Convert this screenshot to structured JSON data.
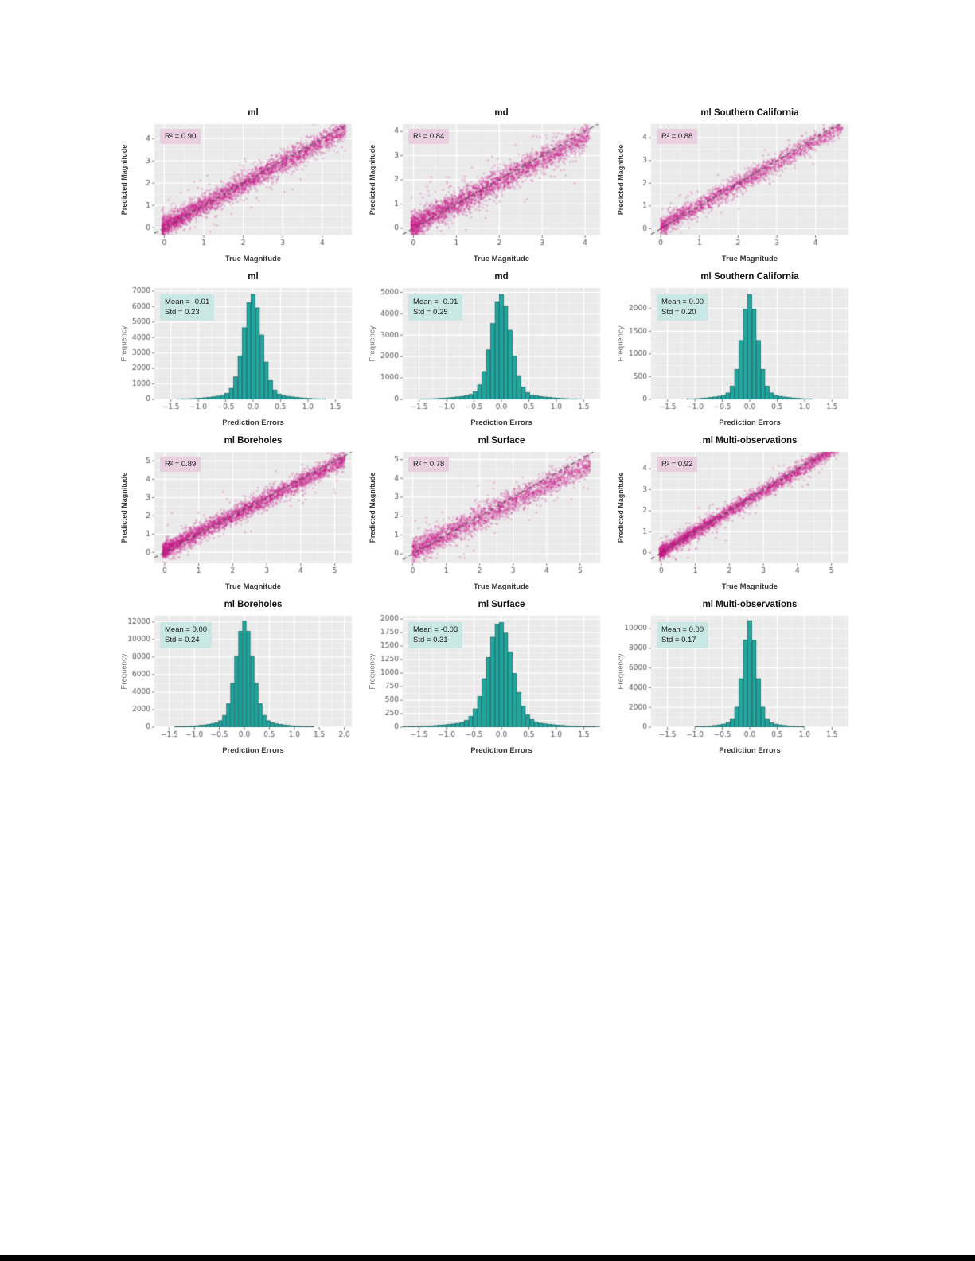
{
  "page": {
    "bottom_bar_color": "#000000"
  },
  "colors": {
    "plot_bg": "#eaeaea",
    "grid_major": "#ffffff",
    "tick_text": "#555555",
    "scatter_point": "#c71585",
    "identity_line": "#555555",
    "hist_fill": "#1fa8a1",
    "hist_edge": "#0b5a56",
    "anno_pink_bg": "#e9cfdf",
    "anno_teal_bg": "#c9e8e5"
  },
  "chart_data": [
    {
      "type": "scatter",
      "title": "ml",
      "annotation": "R² = 0.90",
      "r2": 0.9,
      "xlabel": "True Magnitude",
      "ylabel": "Predicted Magnitude",
      "xlim": [
        -0.25,
        4.75
      ],
      "ylim": [
        -0.35,
        4.65
      ],
      "xticks": [
        0,
        1,
        2,
        3,
        4
      ],
      "xtick_labels": [
        "0",
        "1",
        "2",
        "3",
        "4"
      ],
      "yticks": [
        0,
        1,
        2,
        3,
        4
      ],
      "ytick_labels": [
        "0",
        "1",
        "2",
        "3",
        "4"
      ],
      "data_xmin": -0.05,
      "data_xmax": 4.6,
      "spread": 0.23,
      "fit_slope": 0.95,
      "fit_intercept": 0.07,
      "n_points": 3200
    },
    {
      "type": "scatter",
      "title": "md",
      "annotation": "R² = 0.84",
      "r2": 0.84,
      "xlabel": "True Magnitude",
      "ylabel": "Predicted Magnitude",
      "xlim": [
        -0.25,
        4.35
      ],
      "ylim": [
        -0.3,
        4.3
      ],
      "xticks": [
        0,
        1,
        2,
        3,
        4
      ],
      "xtick_labels": [
        "0",
        "1",
        "2",
        "3",
        "4"
      ],
      "yticks": [
        0,
        1,
        2,
        3,
        4
      ],
      "ytick_labels": [
        "0",
        "1",
        "2",
        "3",
        "4"
      ],
      "data_xmin": -0.05,
      "data_xmax": 4.1,
      "spread": 0.25,
      "fit_slope": 0.92,
      "fit_intercept": 0.1,
      "n_points": 3000
    },
    {
      "type": "scatter",
      "title": "ml Southern California",
      "annotation": "R² = 0.88",
      "r2": 0.88,
      "xlabel": "True Magnitude",
      "ylabel": "Predicted Magnitude",
      "xlim": [
        -0.25,
        4.85
      ],
      "ylim": [
        -0.3,
        4.6
      ],
      "xticks": [
        0,
        1,
        2,
        3,
        4
      ],
      "xtick_labels": [
        "0",
        "1",
        "2",
        "3",
        "4"
      ],
      "yticks": [
        0,
        1,
        2,
        3,
        4
      ],
      "ytick_labels": [
        "0",
        "1",
        "2",
        "3",
        "4"
      ],
      "data_xmin": 0.0,
      "data_xmax": 4.7,
      "spread": 0.2,
      "fit_slope": 0.94,
      "fit_intercept": 0.08,
      "n_points": 2000
    },
    {
      "type": "histogram",
      "title": "ml",
      "stats_lines": [
        "Mean = -0.01",
        "Std = 0.23"
      ],
      "mean": -0.01,
      "std": 0.23,
      "peak": 6800,
      "bin_width": 0.08,
      "xlabel": "Prediction Errors",
      "ylabel": "Frequency",
      "xlim": [
        -1.8,
        1.8
      ],
      "ylim": [
        0,
        7200
      ],
      "xticks": [
        -1.5,
        -1.0,
        -0.5,
        0.0,
        0.5,
        1.0,
        1.5
      ],
      "xtick_labels": [
        "−1.5",
        "−1.0",
        "−0.5",
        "0.0",
        "0.5",
        "1.0",
        "1.5"
      ],
      "yticks": [
        0,
        1000,
        2000,
        3000,
        4000,
        5000,
        6000,
        7000
      ],
      "ytick_labels": [
        "0",
        "1000",
        "2000",
        "3000",
        "4000",
        "5000",
        "6000",
        "7000"
      ]
    },
    {
      "type": "histogram",
      "title": "md",
      "stats_lines": [
        "Mean = -0.01",
        "Std = 0.25"
      ],
      "mean": -0.01,
      "std": 0.25,
      "peak": 4900,
      "bin_width": 0.08,
      "xlabel": "Prediction Errors",
      "ylabel": "Frequency",
      "xlim": [
        -1.8,
        1.8
      ],
      "ylim": [
        0,
        5200
      ],
      "xticks": [
        -1.5,
        -1.0,
        -0.5,
        0.0,
        0.5,
        1.0,
        1.5
      ],
      "xtick_labels": [
        "−1.5",
        "−1.0",
        "−0.5",
        "0.0",
        "0.5",
        "1.0",
        "1.5"
      ],
      "yticks": [
        0,
        1000,
        2000,
        3000,
        4000,
        5000
      ],
      "ytick_labels": [
        "0",
        "1000",
        "2000",
        "3000",
        "4000",
        "5000"
      ]
    },
    {
      "type": "histogram",
      "title": "ml Southern California",
      "stats_lines": [
        "Mean = 0.00",
        "Std = 0.20"
      ],
      "mean": 0.0,
      "std": 0.2,
      "peak": 2300,
      "bin_width": 0.08,
      "xlabel": "Prediction Errors",
      "ylabel": "Frequency",
      "xlim": [
        -1.8,
        1.8
      ],
      "ylim": [
        0,
        2450
      ],
      "xticks": [
        -1.5,
        -1.0,
        -0.5,
        0.0,
        0.5,
        1.0,
        1.5
      ],
      "xtick_labels": [
        "−1.5",
        "−1.0",
        "−0.5",
        "0.0",
        "0.5",
        "1.0",
        "1.5"
      ],
      "yticks": [
        0,
        500,
        1000,
        1500,
        2000
      ],
      "ytick_labels": [
        "0",
        "500",
        "1000",
        "1500",
        "2000"
      ]
    },
    {
      "type": "scatter",
      "title": "ml Boreholes",
      "annotation": "R² = 0.89",
      "r2": 0.89,
      "xlabel": "True Magnitude",
      "ylabel": "Predicted Magnitude",
      "xlim": [
        -0.3,
        5.5
      ],
      "ylim": [
        -0.6,
        5.5
      ],
      "xticks": [
        0,
        1,
        2,
        3,
        4,
        5
      ],
      "xtick_labels": [
        "0",
        "1",
        "2",
        "3",
        "4",
        "5"
      ],
      "yticks": [
        0,
        1,
        2,
        3,
        4,
        5
      ],
      "ytick_labels": [
        "0",
        "1",
        "2",
        "3",
        "4",
        "5"
      ],
      "data_xmin": -0.05,
      "data_xmax": 5.3,
      "spread": 0.24,
      "fit_slope": 0.94,
      "fit_intercept": 0.12,
      "n_points": 3200
    },
    {
      "type": "scatter",
      "title": "ml Surface",
      "annotation": "R² = 0.78",
      "r2": 0.78,
      "xlabel": "True Magnitude",
      "ylabel": "Predicted Magnitude",
      "xlim": [
        -0.3,
        5.6
      ],
      "ylim": [
        -0.5,
        5.4
      ],
      "xticks": [
        0,
        1,
        2,
        3,
        4,
        5
      ],
      "xtick_labels": [
        "0",
        "1",
        "2",
        "3",
        "4",
        "5"
      ],
      "yticks": [
        0,
        1,
        2,
        3,
        4,
        5
      ],
      "ytick_labels": [
        "0",
        "1",
        "2",
        "3",
        "4",
        "5"
      ],
      "data_xmin": 0.0,
      "data_xmax": 5.3,
      "spread": 0.31,
      "fit_slope": 0.87,
      "fit_intercept": 0.15,
      "n_points": 2400
    },
    {
      "type": "scatter",
      "title": "ml Multi-observations",
      "annotation": "R² = 0.92",
      "r2": 0.92,
      "xlabel": "True Magnitude",
      "ylabel": "Predicted Magnitude",
      "xlim": [
        -0.3,
        5.5
      ],
      "ylim": [
        -0.5,
        4.8
      ],
      "xticks": [
        0,
        1,
        2,
        3,
        4,
        5
      ],
      "xtick_labels": [
        "0",
        "1",
        "2",
        "3",
        "4",
        "5"
      ],
      "yticks": [
        0,
        1,
        2,
        3,
        4
      ],
      "ytick_labels": [
        "0",
        "1",
        "2",
        "3",
        "4"
      ],
      "data_xmin": -0.05,
      "data_xmax": 5.2,
      "spread": 0.17,
      "fit_slope": 0.96,
      "fit_intercept": 0.05,
      "n_points": 3000
    },
    {
      "type": "histogram",
      "title": "ml Boreholes",
      "stats_lines": [
        "Mean = 0.00",
        "Std = 0.24"
      ],
      "mean": 0.0,
      "std": 0.24,
      "peak": 12100,
      "bin_width": 0.08,
      "xlabel": "Prediction Errors",
      "ylabel": "Frequency",
      "xlim": [
        -1.8,
        2.15
      ],
      "ylim": [
        0,
        12700
      ],
      "xticks": [
        -1.5,
        -1.0,
        -0.5,
        0.0,
        0.5,
        1.0,
        1.5,
        2.0
      ],
      "xtick_labels": [
        "−1.5",
        "−1.0",
        "−0.5",
        "0.0",
        "0.5",
        "1.0",
        "1.5",
        "2.0"
      ],
      "yticks": [
        0,
        2000,
        4000,
        6000,
        8000,
        10000,
        12000
      ],
      "ytick_labels": [
        "0",
        "2000",
        "4000",
        "6000",
        "8000",
        "10000",
        "12000"
      ]
    },
    {
      "type": "histogram",
      "title": "ml Surface",
      "stats_lines": [
        "Mean = -0.03",
        "Std = 0.31"
      ],
      "mean": -0.03,
      "std": 0.31,
      "peak": 1950,
      "bin_width": 0.08,
      "xlabel": "Prediction Errors",
      "ylabel": "Frequency",
      "xlim": [
        -1.8,
        1.8
      ],
      "ylim": [
        0,
        2060
      ],
      "xticks": [
        -1.5,
        -1.0,
        -0.5,
        0.0,
        0.5,
        1.0,
        1.5
      ],
      "xtick_labels": [
        "−1.5",
        "−1.0",
        "−0.5",
        "0.0",
        "0.5",
        "1.0",
        "1.5"
      ],
      "yticks": [
        0,
        250,
        500,
        750,
        1000,
        1250,
        1500,
        1750,
        2000
      ],
      "ytick_labels": [
        "0",
        "250",
        "500",
        "750",
        "1000",
        "1250",
        "1500",
        "1750",
        "2000"
      ]
    },
    {
      "type": "histogram",
      "title": "ml Multi-observations",
      "stats_lines": [
        "Mean = 0.00",
        "Std = 0.17"
      ],
      "mean": 0.0,
      "std": 0.17,
      "peak": 10800,
      "bin_width": 0.08,
      "xlabel": "Prediction Errors",
      "ylabel": "Frequency",
      "xlim": [
        -1.8,
        1.8
      ],
      "ylim": [
        0,
        11300
      ],
      "xticks": [
        -1.5,
        -1.0,
        -0.5,
        0.0,
        0.5,
        1.0,
        1.5
      ],
      "xtick_labels": [
        "−1.5",
        "−1.0",
        "−0.5",
        "0.0",
        "0.5",
        "1.0",
        "1.5"
      ],
      "yticks": [
        0,
        2000,
        4000,
        6000,
        8000,
        10000
      ],
      "ytick_labels": [
        "0",
        "2000",
        "4000",
        "6000",
        "8000",
        "10000"
      ]
    }
  ]
}
